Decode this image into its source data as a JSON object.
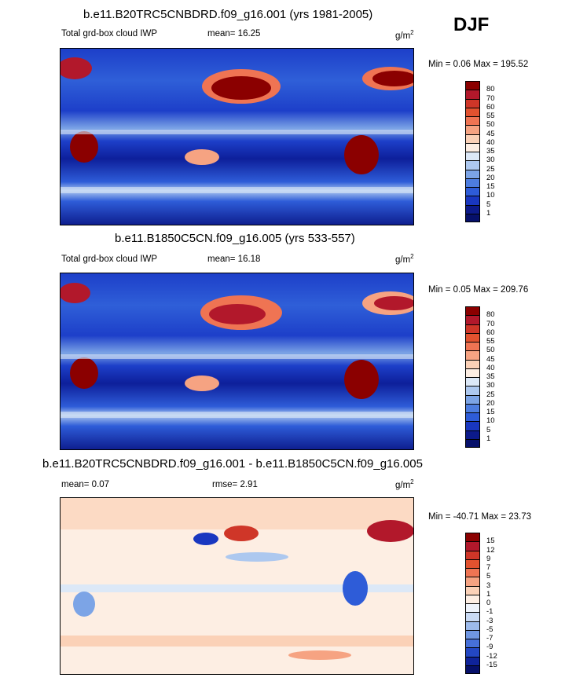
{
  "season": "DJF",
  "panels": [
    {
      "title": "b.e11.B20TRC5CNBDRD.f09_g16.001 (yrs 1981-2005)",
      "left_label": "Total grd-box cloud IWP",
      "mean_label": "mean=  16.25",
      "unit_base": "g/m",
      "unit_exp": "2",
      "minmax": "Min =   0.06 Max = 195.52",
      "colorbar_labels": [
        "80",
        "70",
        "60",
        "55",
        "50",
        "45",
        "40",
        "35",
        "30",
        "25",
        "20",
        "15",
        "10",
        "5",
        "1"
      ],
      "colorbar_colors": [
        "#8b0000",
        "#b2182b",
        "#cf3628",
        "#e2522f",
        "#ef7453",
        "#f6a382",
        "#fbd1b7",
        "#fdeee3",
        "#dce8f7",
        "#adc8ef",
        "#7ca4e6",
        "#4d7de0",
        "#2e5cd8",
        "#1937c0",
        "#0c1a8a",
        "#06106a"
      ]
    },
    {
      "title": "b.e11.B1850C5CN.f09_g16.005 (yrs 533-557)",
      "left_label": "Total grd-box cloud IWP",
      "mean_label": "mean=  16.18",
      "unit_base": "g/m",
      "unit_exp": "2",
      "minmax": "Min =   0.05 Max = 209.76",
      "colorbar_labels": [
        "80",
        "70",
        "60",
        "55",
        "50",
        "45",
        "40",
        "35",
        "30",
        "25",
        "20",
        "15",
        "10",
        "5",
        "1"
      ],
      "colorbar_colors": [
        "#8b0000",
        "#b2182b",
        "#cf3628",
        "#e2522f",
        "#ef7453",
        "#f6a382",
        "#fbd1b7",
        "#fdeee3",
        "#dce8f7",
        "#adc8ef",
        "#7ca4e6",
        "#4d7de0",
        "#2e5cd8",
        "#1937c0",
        "#0c1a8a",
        "#06106a"
      ]
    },
    {
      "title": "b.e11.B20TRC5CNBDRD.f09_g16.001 - b.e11.B1850C5CN.f09_g16.005",
      "left_label": "mean=   0.07",
      "mean_label": "rmse=   2.91",
      "unit_base": "g/m",
      "unit_exp": "2",
      "minmax": "Min = -40.71 Max =  23.73",
      "colorbar_labels": [
        "15",
        "12",
        "9",
        "7",
        "5",
        "3",
        "1",
        "0",
        "-1",
        "-3",
        "-5",
        "-7",
        "-9",
        "-12",
        "-15"
      ],
      "colorbar_colors": [
        "#8b0000",
        "#b2182b",
        "#cf3628",
        "#e2522f",
        "#ef7453",
        "#f6a382",
        "#fbd1b7",
        "#fdeee3",
        "#eef3fb",
        "#c9daf4",
        "#9dbbec",
        "#6f96e2",
        "#4670d9",
        "#2347c4",
        "#0f239a",
        "#06106a"
      ]
    }
  ]
}
